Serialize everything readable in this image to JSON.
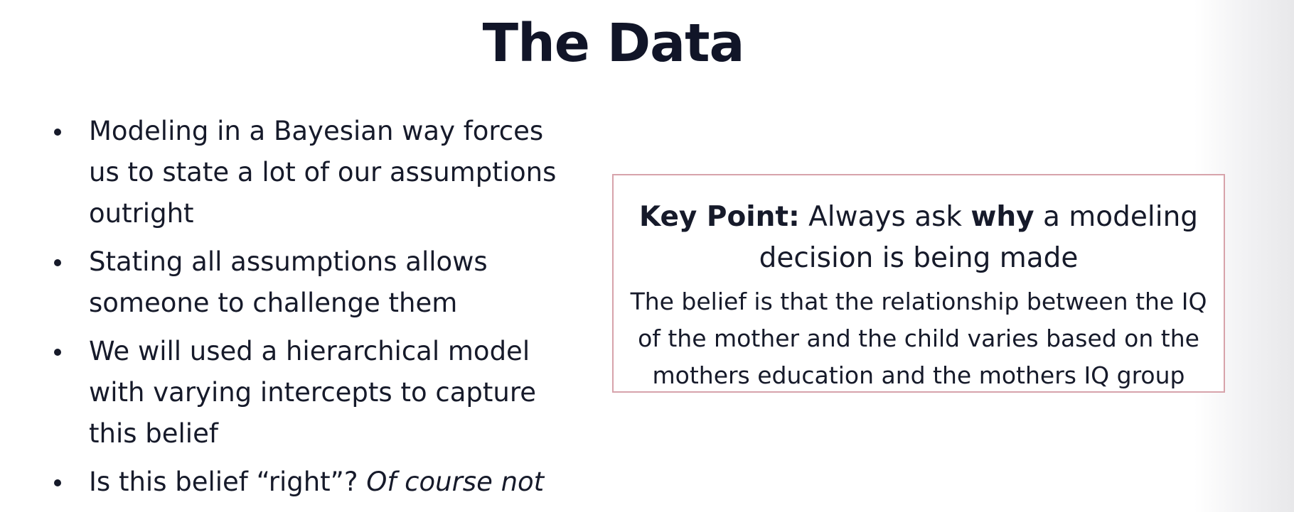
{
  "slide": {
    "title": "The Data",
    "bullets": [
      {
        "text": "Modeling in a Bayesian way forces us to state a lot of our assumptions outright"
      },
      {
        "text": "Stating all assumptions allows someone to challenge them"
      },
      {
        "text": "We will used a hierarchical model with varying intercepts to capture this belief"
      },
      {
        "text": "Is this belief “right”? ",
        "italic": "Of course not"
      }
    ],
    "key_box": {
      "label": "Key Point:",
      "text_pre": " Always ask ",
      "emph": "why",
      "text_post": " a modeling decision is being made",
      "body": "The belief is that the relationship between the IQ of the mother and the child varies based on the mothers education and the mothers IQ group"
    }
  }
}
